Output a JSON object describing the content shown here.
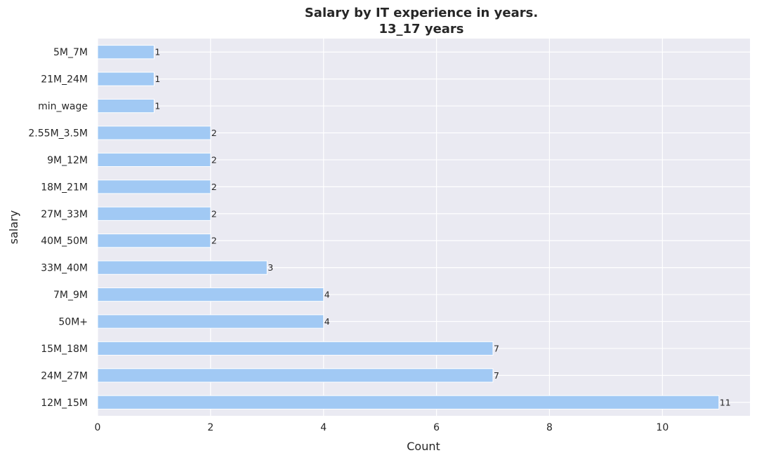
{
  "chart_data": {
    "type": "bar",
    "orientation": "horizontal",
    "title": "Salary by IT experience in years.",
    "subtitle": "13_17 years",
    "xlabel": "Count",
    "ylabel": "salary",
    "categories": [
      "5M_7M",
      "21M_24M",
      "min_wage",
      "2.55M_3.5M",
      "9M_12M",
      "18M_21M",
      "27M_33M",
      "40M_50M",
      "33M_40M",
      "7M_9M",
      "50M+",
      "15M_18M",
      "24M_27M",
      "12M_15M"
    ],
    "values": [
      1,
      1,
      1,
      2,
      2,
      2,
      2,
      2,
      3,
      4,
      4,
      7,
      7,
      11
    ],
    "data_labels": [
      "1",
      "1",
      "1",
      "2",
      "2",
      "2",
      "2",
      "2",
      "3",
      "4",
      "4",
      "7",
      "7",
      "11"
    ],
    "xticks": [
      0,
      2,
      4,
      6,
      8,
      10
    ],
    "xtick_labels": [
      "0",
      "2",
      "4",
      "6",
      "8",
      "10"
    ],
    "xlim": [
      0,
      11.55
    ],
    "grid": true,
    "colors": {
      "bar": "#a1c9f4",
      "background": "#eaeaf2",
      "grid": "#ffffff",
      "text": "#262626"
    }
  }
}
